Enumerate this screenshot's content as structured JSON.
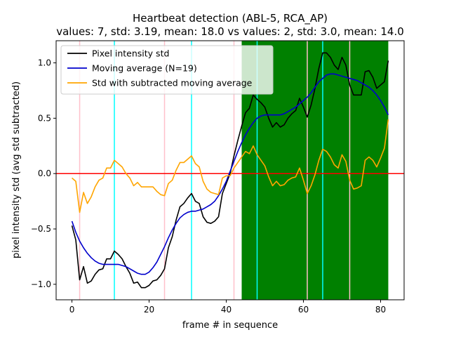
{
  "chart_data": {
    "type": "line",
    "title": "Heartbeat detection (ABL-5, RCA_AP)",
    "subtitle": "values: 7, std: 3.19, mean: 18.0 vs values: 2, std: 3.0, mean: 14.0",
    "xlabel": "frame # in sequence",
    "ylabel": "pixel intensity std (avg std subtracted)",
    "xlim": [
      -4.1,
      86.1
    ],
    "ylim": [
      -1.14,
      1.2
    ],
    "xticks": [
      0,
      20,
      40,
      60,
      80
    ],
    "xtick_labels": [
      "0",
      "20",
      "40",
      "60",
      "80"
    ],
    "yticks": [
      -1.0,
      -0.5,
      0.0,
      0.5,
      1.0
    ],
    "ytick_labels": [
      "−1.0",
      "−0.5",
      "0.0",
      "0.5",
      "1.0"
    ],
    "legend_position": "top-left",
    "grid": false,
    "shaded_region": {
      "x": [
        44,
        82
      ],
      "color": "#008000"
    },
    "horizontal_line": {
      "y": 0.0,
      "color": "#ff0000"
    },
    "vertical_lines": [
      {
        "x": 2,
        "color": "#ffc0cb"
      },
      {
        "x": 11,
        "color": "#00ffff"
      },
      {
        "x": 24,
        "color": "#ffc0cb"
      },
      {
        "x": 31,
        "color": "#00ffff"
      },
      {
        "x": 42,
        "color": "#ffc0cb"
      },
      {
        "x": 48,
        "color": "#00ffff"
      },
      {
        "x": 61,
        "color": "#ffc0cb"
      },
      {
        "x": 65,
        "color": "#00ffff"
      },
      {
        "x": 72,
        "color": "#ffc0cb"
      }
    ],
    "series": [
      {
        "name": "Pixel intensity std",
        "color": "#000000",
        "x": [
          0,
          1,
          2,
          3,
          4,
          5,
          6,
          7,
          8,
          9,
          10,
          11,
          12,
          13,
          14,
          15,
          16,
          17,
          18,
          19,
          20,
          21,
          22,
          23,
          24,
          25,
          26,
          27,
          28,
          29,
          30,
          31,
          32,
          33,
          34,
          35,
          36,
          37,
          38,
          39,
          40,
          41,
          42,
          43,
          44,
          45,
          46,
          47,
          48,
          49,
          50,
          51,
          52,
          53,
          54,
          55,
          56,
          57,
          58,
          59,
          60,
          61,
          62,
          63,
          64,
          65,
          66,
          67,
          68,
          69,
          70,
          71,
          72,
          73,
          74,
          75,
          76,
          77,
          78,
          79,
          80,
          81,
          82
        ],
        "values": [
          -0.47,
          -0.6,
          -0.96,
          -0.84,
          -0.99,
          -0.97,
          -0.91,
          -0.87,
          -0.86,
          -0.77,
          -0.77,
          -0.7,
          -0.73,
          -0.77,
          -0.84,
          -0.9,
          -0.99,
          -0.98,
          -1.03,
          -1.03,
          -1.01,
          -0.97,
          -0.96,
          -0.92,
          -0.86,
          -0.67,
          -0.57,
          -0.42,
          -0.3,
          -0.27,
          -0.22,
          -0.18,
          -0.25,
          -0.27,
          -0.39,
          -0.44,
          -0.45,
          -0.43,
          -0.39,
          -0.18,
          -0.09,
          0.0,
          0.16,
          0.3,
          0.43,
          0.55,
          0.59,
          0.71,
          0.67,
          0.64,
          0.6,
          0.5,
          0.42,
          0.46,
          0.42,
          0.44,
          0.5,
          0.54,
          0.57,
          0.68,
          0.6,
          0.51,
          0.62,
          0.77,
          0.95,
          1.09,
          1.09,
          1.05,
          0.98,
          0.94,
          1.05,
          0.98,
          0.8,
          0.71,
          0.71,
          0.71,
          0.92,
          0.93,
          0.87,
          0.77,
          0.8,
          0.83,
          1.02
        ]
      },
      {
        "name": "Moving average (N=19)",
        "color": "#0000cc",
        "x": [
          0,
          1,
          2,
          3,
          4,
          5,
          6,
          7,
          8,
          9,
          10,
          11,
          12,
          13,
          14,
          15,
          16,
          17,
          18,
          19,
          20,
          21,
          22,
          23,
          24,
          25,
          26,
          27,
          28,
          29,
          30,
          31,
          32,
          33,
          34,
          35,
          36,
          37,
          38,
          39,
          40,
          41,
          42,
          43,
          44,
          45,
          46,
          47,
          48,
          49,
          50,
          51,
          52,
          53,
          54,
          55,
          56,
          57,
          58,
          59,
          60,
          61,
          62,
          63,
          64,
          65,
          66,
          67,
          68,
          69,
          70,
          71,
          72,
          73,
          74,
          75,
          76,
          77,
          78,
          79,
          80,
          81,
          82
        ],
        "values": [
          -0.43,
          -0.53,
          -0.61,
          -0.67,
          -0.72,
          -0.76,
          -0.79,
          -0.81,
          -0.82,
          -0.82,
          -0.82,
          -0.82,
          -0.82,
          -0.83,
          -0.84,
          -0.86,
          -0.88,
          -0.9,
          -0.91,
          -0.91,
          -0.89,
          -0.85,
          -0.8,
          -0.73,
          -0.66,
          -0.58,
          -0.51,
          -0.45,
          -0.4,
          -0.37,
          -0.35,
          -0.34,
          -0.34,
          -0.33,
          -0.32,
          -0.3,
          -0.28,
          -0.25,
          -0.2,
          -0.14,
          -0.07,
          0.02,
          0.11,
          0.2,
          0.28,
          0.35,
          0.41,
          0.46,
          0.5,
          0.52,
          0.53,
          0.53,
          0.53,
          0.53,
          0.53,
          0.54,
          0.56,
          0.58,
          0.6,
          0.63,
          0.66,
          0.69,
          0.73,
          0.78,
          0.83,
          0.86,
          0.89,
          0.9,
          0.9,
          0.89,
          0.88,
          0.87,
          0.86,
          0.85,
          0.84,
          0.82,
          0.8,
          0.78,
          0.75,
          0.71,
          0.66,
          0.6,
          0.53
        ]
      },
      {
        "name": "Std with subtracted moving average",
        "color": "#ffa500",
        "x": [
          0,
          1,
          2,
          3,
          4,
          5,
          6,
          7,
          8,
          9,
          10,
          11,
          12,
          13,
          14,
          15,
          16,
          17,
          18,
          19,
          20,
          21,
          22,
          23,
          24,
          25,
          26,
          27,
          28,
          29,
          30,
          31,
          32,
          33,
          34,
          35,
          36,
          37,
          38,
          39,
          40,
          41,
          42,
          43,
          44,
          45,
          46,
          47,
          48,
          49,
          50,
          51,
          52,
          53,
          54,
          55,
          56,
          57,
          58,
          59,
          60,
          61,
          62,
          63,
          64,
          65,
          66,
          67,
          68,
          69,
          70,
          71,
          72,
          73,
          74,
          75,
          76,
          77,
          78,
          79,
          80,
          81,
          82
        ],
        "values": [
          -0.04,
          -0.07,
          -0.35,
          -0.17,
          -0.27,
          -0.21,
          -0.12,
          -0.06,
          -0.04,
          0.05,
          0.05,
          0.12,
          0.09,
          0.06,
          0.0,
          -0.04,
          -0.11,
          -0.08,
          -0.12,
          -0.12,
          -0.12,
          -0.12,
          -0.16,
          -0.19,
          -0.2,
          -0.09,
          -0.06,
          0.03,
          0.1,
          0.1,
          0.13,
          0.16,
          0.09,
          0.06,
          -0.07,
          -0.14,
          -0.17,
          -0.18,
          -0.19,
          -0.04,
          -0.02,
          -0.02,
          0.05,
          0.1,
          0.15,
          0.2,
          0.18,
          0.25,
          0.17,
          0.12,
          0.07,
          -0.03,
          -0.11,
          -0.07,
          -0.11,
          -0.1,
          -0.06,
          -0.04,
          -0.03,
          0.05,
          -0.06,
          -0.18,
          -0.11,
          -0.01,
          0.12,
          0.22,
          0.2,
          0.15,
          0.08,
          0.05,
          0.17,
          0.11,
          -0.06,
          -0.14,
          -0.13,
          -0.11,
          0.12,
          0.15,
          0.12,
          0.06,
          0.14,
          0.23,
          0.49
        ]
      }
    ]
  }
}
